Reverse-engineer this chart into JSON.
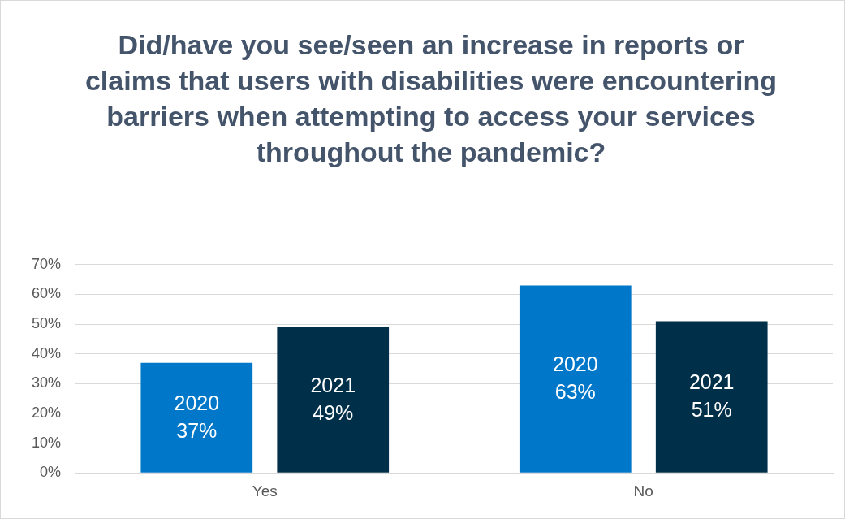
{
  "chart_data": {
    "type": "bar",
    "title": "Did/have you see/seen an increase in reports or claims that users with disabilities were encountering barriers when attempting to access your services throughout the pandemic?",
    "categories": [
      "Yes",
      "No"
    ],
    "series": [
      {
        "name": "2020",
        "color": "#0077c8",
        "values": [
          37,
          63
        ],
        "value_labels": [
          "37%",
          "63%"
        ]
      },
      {
        "name": "2021",
        "color": "#003049",
        "values": [
          49,
          51
        ],
        "value_labels": [
          "49%",
          "51%"
        ]
      }
    ],
    "ylim": [
      0,
      70
    ],
    "yticks": [
      {
        "value": 0,
        "label": "0%"
      },
      {
        "value": 10,
        "label": "10%"
      },
      {
        "value": 20,
        "label": "20%"
      },
      {
        "value": 30,
        "label": "30%"
      },
      {
        "value": 40,
        "label": "40%"
      },
      {
        "value": 50,
        "label": "50%"
      },
      {
        "value": 60,
        "label": "60%"
      },
      {
        "value": 70,
        "label": "70%"
      }
    ],
    "grid": "y",
    "legend": false
  }
}
